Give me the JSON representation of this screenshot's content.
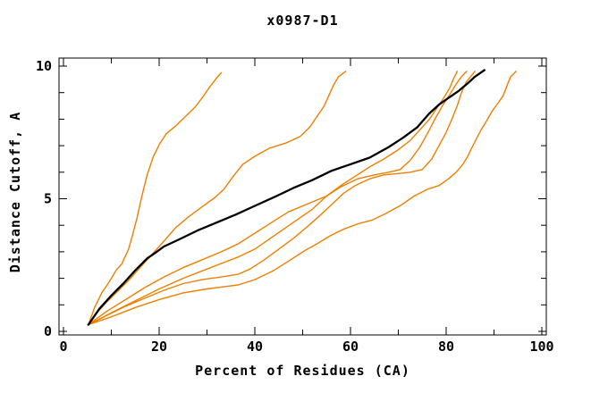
{
  "title": "x0987-D1",
  "axes": {
    "x": {
      "label": "Percent of Residues (CA)",
      "range": [
        0,
        100
      ],
      "major_ticks": [
        0,
        20,
        40,
        60,
        80,
        100
      ],
      "minor_ticks": [
        10,
        30,
        50,
        70,
        90
      ]
    },
    "y": {
      "label": "Distance Cutoff, A",
      "range": [
        0,
        10
      ],
      "major_ticks": [
        0,
        5,
        10
      ],
      "minor_ticks": [
        1,
        2,
        3,
        4,
        6,
        7,
        8,
        9
      ]
    }
  },
  "colors": {
    "model_line": "#ee7f00",
    "reference_line": "#000000",
    "frame": "#000000",
    "background": "#ffffff"
  },
  "chart_data": {
    "type": "line",
    "title": "x0987-D1",
    "xlabel": "Percent of Residues (CA)",
    "ylabel": "Distance Cutoff, A",
    "xlim": [
      0,
      100
    ],
    "ylim": [
      0,
      10
    ],
    "grid": false,
    "legend": null,
    "description": "Six orange model curves and one thick black reference curve, all starting near (5%, 0.25 A) and rising to ~9.8 A, topping out near 33, 59, 82, 84, 86, 94.5 (orange) and 88 (black) percent.",
    "series": [
      {
        "name": "orange-1",
        "color": "#ee7f00",
        "width": 1.4,
        "points": [
          [
            5.2,
            0.25
          ],
          [
            6.5,
            0.9
          ],
          [
            8,
            1.45
          ],
          [
            9.5,
            1.85
          ],
          [
            11,
            2.3
          ],
          [
            12.2,
            2.55
          ],
          [
            13.6,
            3.1
          ],
          [
            14.4,
            3.6
          ],
          [
            15.4,
            4.3
          ],
          [
            16.4,
            5.1
          ],
          [
            17.5,
            5.9
          ],
          [
            18.8,
            6.6
          ],
          [
            20.2,
            7.1
          ],
          [
            21.5,
            7.45
          ],
          [
            23.5,
            7.75
          ],
          [
            25.5,
            8.1
          ],
          [
            27.5,
            8.45
          ],
          [
            29,
            8.8
          ],
          [
            30.5,
            9.2
          ],
          [
            32,
            9.55
          ],
          [
            33,
            9.75
          ]
        ]
      },
      {
        "name": "orange-2",
        "color": "#ee7f00",
        "width": 1.4,
        "points": [
          [
            5.2,
            0.25
          ],
          [
            7,
            0.7
          ],
          [
            9,
            1.1
          ],
          [
            11,
            1.45
          ],
          [
            13.5,
            1.9
          ],
          [
            16,
            2.4
          ],
          [
            18.5,
            2.9
          ],
          [
            20.5,
            3.3
          ],
          [
            23.4,
            3.9
          ],
          [
            26,
            4.3
          ],
          [
            29,
            4.7
          ],
          [
            31.7,
            5.05
          ],
          [
            33.5,
            5.35
          ],
          [
            35.5,
            5.85
          ],
          [
            37.5,
            6.3
          ],
          [
            40,
            6.6
          ],
          [
            43,
            6.9
          ],
          [
            46.5,
            7.1
          ],
          [
            49.5,
            7.35
          ],
          [
            51.5,
            7.7
          ],
          [
            53,
            8.1
          ],
          [
            54.5,
            8.5
          ],
          [
            55.5,
            8.9
          ],
          [
            56.5,
            9.3
          ],
          [
            57.5,
            9.6
          ],
          [
            59,
            9.8
          ]
        ]
      },
      {
        "name": "orange-3",
        "color": "#ee7f00",
        "width": 1.4,
        "points": [
          [
            5.2,
            0.25
          ],
          [
            9,
            0.75
          ],
          [
            13,
            1.2
          ],
          [
            17,
            1.65
          ],
          [
            21,
            2.05
          ],
          [
            25,
            2.4
          ],
          [
            29,
            2.7
          ],
          [
            33,
            3.0
          ],
          [
            36.5,
            3.3
          ],
          [
            40,
            3.7
          ],
          [
            43.5,
            4.1
          ],
          [
            47,
            4.5
          ],
          [
            51,
            4.8
          ],
          [
            55,
            5.1
          ],
          [
            58,
            5.5
          ],
          [
            61,
            5.85
          ],
          [
            64,
            6.2
          ],
          [
            67,
            6.5
          ],
          [
            70,
            6.85
          ],
          [
            72.5,
            7.2
          ],
          [
            74.5,
            7.6
          ],
          [
            76.5,
            8.0
          ],
          [
            78,
            8.4
          ],
          [
            79.5,
            8.8
          ],
          [
            80.8,
            9.2
          ],
          [
            81.6,
            9.55
          ],
          [
            82.3,
            9.8
          ]
        ]
      },
      {
        "name": "orange-4",
        "color": "#ee7f00",
        "width": 1.4,
        "points": [
          [
            5.2,
            0.25
          ],
          [
            10,
            0.7
          ],
          [
            15,
            1.15
          ],
          [
            20,
            1.6
          ],
          [
            25,
            2.0
          ],
          [
            30,
            2.35
          ],
          [
            36.5,
            2.8
          ],
          [
            40,
            3.1
          ],
          [
            44,
            3.6
          ],
          [
            48,
            4.1
          ],
          [
            52,
            4.6
          ],
          [
            55,
            5.1
          ],
          [
            58,
            5.45
          ],
          [
            61.5,
            5.75
          ],
          [
            65,
            5.9
          ],
          [
            68,
            6.0
          ],
          [
            70.4,
            6.1
          ],
          [
            72.5,
            6.45
          ],
          [
            74.5,
            6.95
          ],
          [
            76.2,
            7.5
          ],
          [
            77.8,
            8.05
          ],
          [
            79.2,
            8.5
          ],
          [
            80.8,
            8.95
          ],
          [
            82.2,
            9.35
          ],
          [
            83.2,
            9.6
          ],
          [
            84.3,
            9.8
          ]
        ]
      },
      {
        "name": "orange-5",
        "color": "#ee7f00",
        "width": 1.4,
        "points": [
          [
            5.2,
            0.25
          ],
          [
            9,
            0.6
          ],
          [
            13,
            0.95
          ],
          [
            17,
            1.25
          ],
          [
            21,
            1.55
          ],
          [
            25,
            1.8
          ],
          [
            29,
            1.95
          ],
          [
            33,
            2.05
          ],
          [
            36.5,
            2.15
          ],
          [
            39,
            2.35
          ],
          [
            42,
            2.7
          ],
          [
            45,
            3.1
          ],
          [
            48,
            3.5
          ],
          [
            51,
            3.95
          ],
          [
            53.5,
            4.35
          ],
          [
            56.2,
            4.8
          ],
          [
            58.5,
            5.2
          ],
          [
            61,
            5.5
          ],
          [
            64,
            5.75
          ],
          [
            67,
            5.9
          ],
          [
            70,
            5.95
          ],
          [
            72.5,
            6.0
          ],
          [
            75,
            6.1
          ],
          [
            77,
            6.5
          ],
          [
            78.5,
            7.0
          ],
          [
            80,
            7.5
          ],
          [
            81.2,
            8.0
          ],
          [
            82.3,
            8.5
          ],
          [
            83.2,
            9.0
          ],
          [
            84.2,
            9.4
          ],
          [
            86,
            9.8
          ]
        ]
      },
      {
        "name": "orange-6",
        "color": "#ee7f00",
        "width": 1.4,
        "points": [
          [
            5.2,
            0.25
          ],
          [
            10,
            0.55
          ],
          [
            15,
            0.9
          ],
          [
            20,
            1.2
          ],
          [
            25,
            1.45
          ],
          [
            30,
            1.6
          ],
          [
            36.5,
            1.75
          ],
          [
            40,
            1.95
          ],
          [
            44,
            2.3
          ],
          [
            47.5,
            2.7
          ],
          [
            50.5,
            3.05
          ],
          [
            53,
            3.3
          ],
          [
            55.7,
            3.6
          ],
          [
            58.5,
            3.85
          ],
          [
            61.5,
            4.05
          ],
          [
            64.6,
            4.2
          ],
          [
            67.5,
            4.45
          ],
          [
            70.5,
            4.75
          ],
          [
            73.3,
            5.1
          ],
          [
            76,
            5.35
          ],
          [
            78.5,
            5.5
          ],
          [
            80.5,
            5.75
          ],
          [
            82.1,
            6.0
          ],
          [
            83.5,
            6.3
          ],
          [
            84.5,
            6.6
          ],
          [
            85.3,
            6.9
          ],
          [
            86.3,
            7.25
          ],
          [
            87.3,
            7.6
          ],
          [
            88.5,
            7.95
          ],
          [
            89.6,
            8.3
          ],
          [
            90.8,
            8.6
          ],
          [
            91.8,
            8.85
          ],
          [
            92.4,
            9.1
          ],
          [
            92.9,
            9.35
          ],
          [
            93.5,
            9.6
          ],
          [
            94.6,
            9.8
          ]
        ]
      },
      {
        "name": "black",
        "color": "#000000",
        "width": 2.3,
        "points": [
          [
            5.2,
            0.25
          ],
          [
            7.5,
            0.85
          ],
          [
            10,
            1.35
          ],
          [
            12.5,
            1.8
          ],
          [
            15,
            2.3
          ],
          [
            17.5,
            2.75
          ],
          [
            19.5,
            3.0
          ],
          [
            21,
            3.2
          ],
          [
            24,
            3.45
          ],
          [
            28,
            3.8
          ],
          [
            32,
            4.1
          ],
          [
            36,
            4.4
          ],
          [
            40,
            4.73
          ],
          [
            44.3,
            5.08
          ],
          [
            48,
            5.4
          ],
          [
            52,
            5.7
          ],
          [
            56,
            6.05
          ],
          [
            60,
            6.3
          ],
          [
            64,
            6.55
          ],
          [
            68,
            6.95
          ],
          [
            71,
            7.3
          ],
          [
            74,
            7.7
          ],
          [
            76.4,
            8.2
          ],
          [
            78.5,
            8.55
          ],
          [
            80.5,
            8.8
          ],
          [
            82.5,
            9.05
          ],
          [
            84.5,
            9.35
          ],
          [
            86,
            9.6
          ],
          [
            88,
            9.85
          ]
        ]
      }
    ]
  }
}
